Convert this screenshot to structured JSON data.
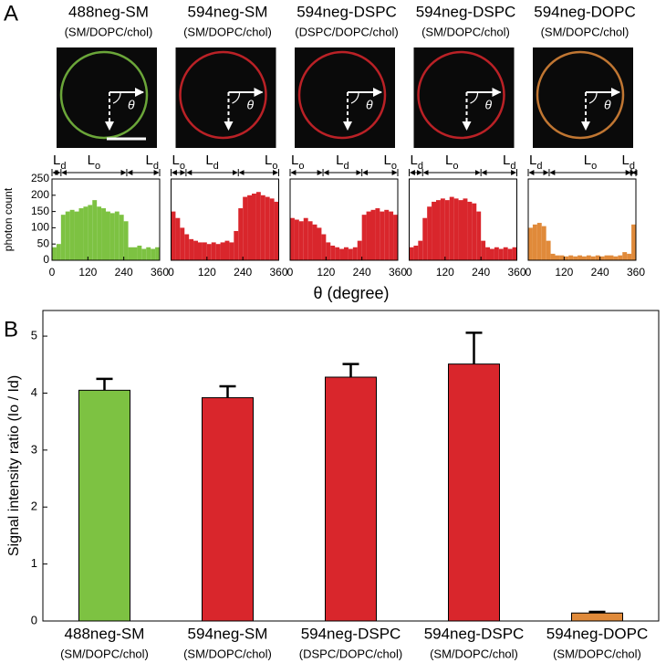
{
  "panel_labels": [
    "A",
    "B"
  ],
  "angle_symbol": "θ",
  "shared_xlabel": "θ (degree)",
  "chart_data": [
    {
      "type": "histogram",
      "title": "488neg-SM",
      "subtitle": "(SM/DOPC/chol)",
      "color": "#7dc242",
      "ylabel": "photon count",
      "xlim": [
        0,
        360
      ],
      "xticks": [
        0,
        120,
        240,
        360
      ],
      "ylim": [
        0,
        250
      ],
      "yticks": [
        0,
        50,
        100,
        150,
        200,
        250
      ],
      "bins": [
        0,
        15,
        30,
        45,
        60,
        75,
        90,
        105,
        120,
        135,
        150,
        165,
        180,
        195,
        210,
        225,
        240,
        255,
        270,
        285,
        300,
        315,
        330,
        345,
        360
      ],
      "counts": [
        40,
        50,
        140,
        150,
        155,
        150,
        160,
        165,
        170,
        185,
        165,
        160,
        150,
        145,
        150,
        140,
        120,
        40,
        40,
        45,
        35,
        40,
        35,
        40
      ],
      "regions": [
        {
          "label": "Ld",
          "start": 0,
          "end": 30
        },
        {
          "label": "Lo",
          "start": 30,
          "end": 250
        },
        {
          "label": "Ld",
          "start": 250,
          "end": 360
        }
      ]
    },
    {
      "type": "histogram",
      "title": "594neg-SM",
      "subtitle": "(SM/DOPC/chol)",
      "color": "#d9262c",
      "xlim": [
        0,
        360
      ],
      "xticks": [
        0,
        120,
        240,
        360
      ],
      "ylim": [
        0,
        250
      ],
      "bins": [
        0,
        15,
        30,
        45,
        60,
        75,
        90,
        105,
        120,
        135,
        150,
        165,
        180,
        195,
        210,
        225,
        240,
        255,
        270,
        285,
        300,
        315,
        330,
        345,
        360
      ],
      "counts": [
        150,
        130,
        100,
        80,
        65,
        60,
        55,
        55,
        50,
        55,
        50,
        55,
        60,
        55,
        90,
        160,
        195,
        200,
        205,
        210,
        200,
        195,
        190,
        180
      ],
      "regions": [
        {
          "label": "Lo",
          "start": 0,
          "end": 50
        },
        {
          "label": "Ld",
          "start": 50,
          "end": 225
        },
        {
          "label": "Lo",
          "start": 225,
          "end": 360
        }
      ]
    },
    {
      "type": "histogram",
      "title": "594neg-DSPC",
      "subtitle": "(DSPC/DOPC/chol)",
      "color": "#d9262c",
      "xlim": [
        0,
        360
      ],
      "xticks": [
        0,
        120,
        240,
        360
      ],
      "ylim": [
        0,
        250
      ],
      "bins": [
        0,
        15,
        30,
        45,
        60,
        75,
        90,
        105,
        120,
        135,
        150,
        165,
        180,
        195,
        210,
        225,
        240,
        255,
        270,
        285,
        300,
        315,
        330,
        345,
        360
      ],
      "counts": [
        130,
        125,
        120,
        130,
        120,
        110,
        100,
        80,
        55,
        45,
        40,
        35,
        40,
        35,
        40,
        60,
        140,
        150,
        155,
        160,
        150,
        155,
        150,
        140
      ],
      "regions": [
        {
          "label": "Lo",
          "start": 0,
          "end": 110
        },
        {
          "label": "Ld",
          "start": 110,
          "end": 240
        },
        {
          "label": "Lo",
          "start": 240,
          "end": 360
        }
      ]
    },
    {
      "type": "histogram",
      "title": "594neg-DSPC",
      "subtitle": "(SM/DOPC/chol)",
      "color": "#d9262c",
      "xlim": [
        0,
        360
      ],
      "xticks": [
        0,
        120,
        240,
        360
      ],
      "ylim": [
        0,
        250
      ],
      "bins": [
        0,
        15,
        30,
        45,
        60,
        75,
        90,
        105,
        120,
        135,
        150,
        165,
        180,
        195,
        210,
        225,
        240,
        255,
        270,
        285,
        300,
        315,
        330,
        345,
        360
      ],
      "counts": [
        40,
        45,
        60,
        130,
        165,
        180,
        185,
        190,
        185,
        195,
        190,
        185,
        190,
        180,
        175,
        150,
        60,
        40,
        35,
        40,
        35,
        40,
        35,
        40
      ],
      "regions": [
        {
          "label": "Ld",
          "start": 0,
          "end": 45
        },
        {
          "label": "Lo",
          "start": 45,
          "end": 240
        },
        {
          "label": "Ld",
          "start": 240,
          "end": 360
        }
      ]
    },
    {
      "type": "histogram",
      "title": "594neg-DOPC",
      "subtitle": "(SM/DOPC/chol)",
      "color": "#e08a3a",
      "xlim": [
        0,
        360
      ],
      "xticks": [
        0,
        120,
        240,
        360
      ],
      "ylim": [
        0,
        250
      ],
      "bins": [
        0,
        15,
        30,
        45,
        60,
        75,
        90,
        105,
        120,
        135,
        150,
        165,
        180,
        195,
        210,
        225,
        240,
        255,
        270,
        285,
        300,
        315,
        330,
        345,
        360
      ],
      "counts": [
        100,
        110,
        115,
        105,
        60,
        20,
        15,
        15,
        12,
        15,
        12,
        15,
        12,
        15,
        12,
        15,
        12,
        15,
        15,
        12,
        15,
        25,
        20,
        110
      ],
      "regions": [
        {
          "label": "Ld",
          "start": 0,
          "end": 70
        },
        {
          "label": "Lo",
          "start": 70,
          "end": 345
        },
        {
          "label": "Ld",
          "start": 345,
          "end": 360
        }
      ]
    },
    {
      "type": "bar",
      "ylabel": "Signal intensity ratio (Io / Id)",
      "categories": [
        "488neg-SM",
        "594neg-SM",
        "594neg-DSPC",
        "594neg-DSPC",
        "594neg-DOPC"
      ],
      "category_subtitles": [
        "(SM/DOPC/chol)",
        "(SM/DOPC/chol)",
        "(DSPC/DOPC/chol)",
        "(SM/DOPC/chol)",
        "(SM/DOPC/chol)"
      ],
      "values": [
        4.05,
        3.92,
        4.28,
        4.51,
        0.14
      ],
      "errors": [
        0.2,
        0.2,
        0.23,
        0.55,
        0.02
      ],
      "colors": [
        "#7dc242",
        "#d9262c",
        "#d9262c",
        "#d9262c",
        "#e08a3a"
      ],
      "ylim": [
        0,
        5.45
      ],
      "yticks": [
        0,
        1,
        2,
        3,
        4,
        5
      ]
    }
  ]
}
